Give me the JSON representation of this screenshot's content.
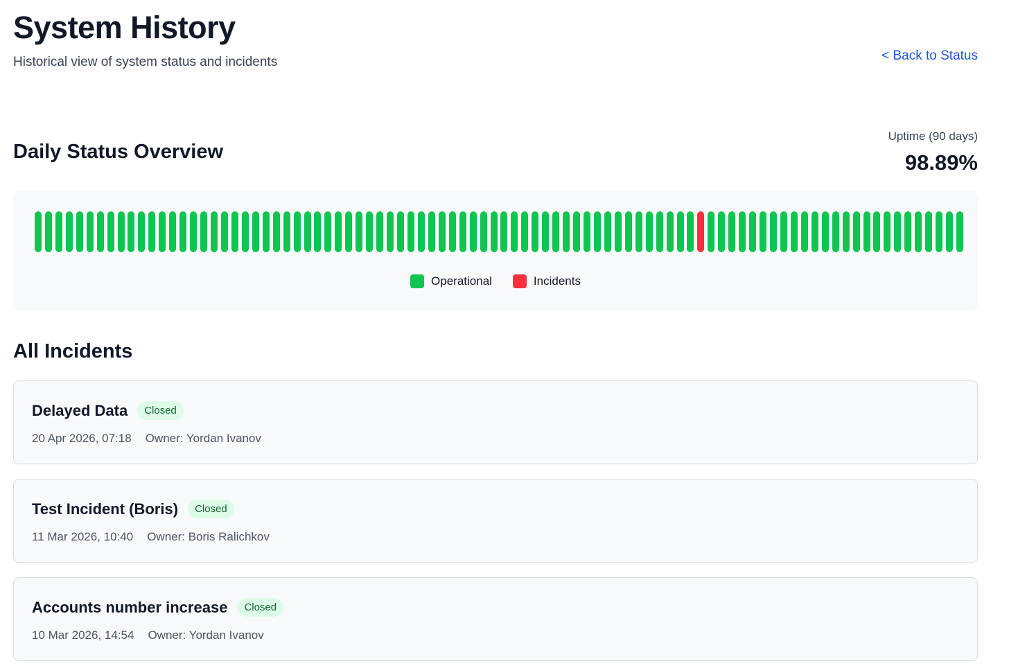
{
  "header": {
    "title": "System History",
    "subtitle": "Historical view of system status and incidents",
    "back_link": "< Back to Status"
  },
  "overview": {
    "title": "Daily Status Overview",
    "uptime_label": "Uptime (90 days)",
    "uptime_value": "98.89%",
    "legend": [
      {
        "label": "Operational",
        "color": "#0ec54f"
      },
      {
        "label": "Incidents",
        "color": "#f7303e"
      }
    ],
    "days": [
      0,
      0,
      0,
      0,
      0,
      0,
      0,
      0,
      0,
      0,
      0,
      0,
      0,
      0,
      0,
      0,
      0,
      0,
      0,
      0,
      0,
      0,
      0,
      0,
      0,
      0,
      0,
      0,
      0,
      0,
      0,
      0,
      0,
      0,
      0,
      0,
      0,
      0,
      0,
      0,
      0,
      0,
      0,
      0,
      0,
      0,
      0,
      0,
      0,
      0,
      0,
      0,
      0,
      0,
      0,
      0,
      0,
      0,
      0,
      0,
      0,
      0,
      0,
      0,
      1,
      0,
      0,
      0,
      0,
      0,
      0,
      0,
      0,
      0,
      0,
      0,
      0,
      0,
      0,
      0,
      0,
      0,
      0,
      0,
      0,
      0,
      0,
      0,
      0,
      0
    ]
  },
  "incidents": {
    "title": "All Incidents",
    "items": [
      {
        "title": "Delayed Data",
        "status": "Closed",
        "date": "20 Apr 2026, 07:18",
        "owner": "Owner: Yordan Ivanov"
      },
      {
        "title": "Test Incident (Boris)",
        "status": "Closed",
        "date": "11 Mar 2026, 10:40",
        "owner": "Owner: Boris Ralichkov"
      },
      {
        "title": "Accounts number increase",
        "status": "Closed",
        "date": "10 Mar 2026, 14:54",
        "owner": "Owner: Yordan Ivanov"
      }
    ]
  }
}
